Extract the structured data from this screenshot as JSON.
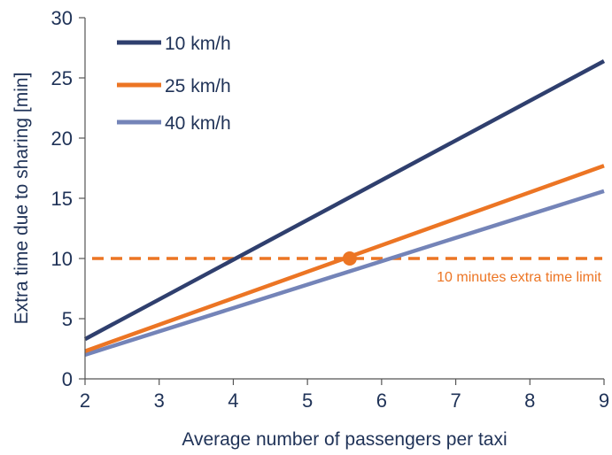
{
  "chart_data": {
    "type": "line",
    "title": "",
    "xlabel": "Average number of passengers per taxi",
    "ylabel": "Extra time due to sharing [min]",
    "xlim": [
      2,
      9
    ],
    "ylim": [
      0,
      30
    ],
    "xticks": [
      "2",
      "3",
      "4",
      "5",
      "6",
      "7",
      "8",
      "9"
    ],
    "yticks": [
      "0",
      "5",
      "10",
      "15",
      "20",
      "25",
      "30"
    ],
    "grid": false,
    "legend_position": "top-left",
    "series": [
      {
        "name": "10 km/h",
        "color": "#2f3f6e",
        "x": [
          2,
          9
        ],
        "y": [
          3.3,
          26.4
        ]
      },
      {
        "name": "25 km/h",
        "color": "#ec7524",
        "x": [
          2,
          9
        ],
        "y": [
          2.3,
          17.7
        ]
      },
      {
        "name": "40 km/h",
        "color": "#7484b8",
        "x": [
          2,
          9
        ],
        "y": [
          2.0,
          15.6
        ]
      }
    ],
    "reference_line": {
      "y": 10,
      "style": "dashed",
      "color": "#ec7524",
      "label": "10 minutes extra time limit"
    },
    "highlight_point": {
      "x": 5.57,
      "y": 10,
      "color": "#ec7524"
    }
  }
}
